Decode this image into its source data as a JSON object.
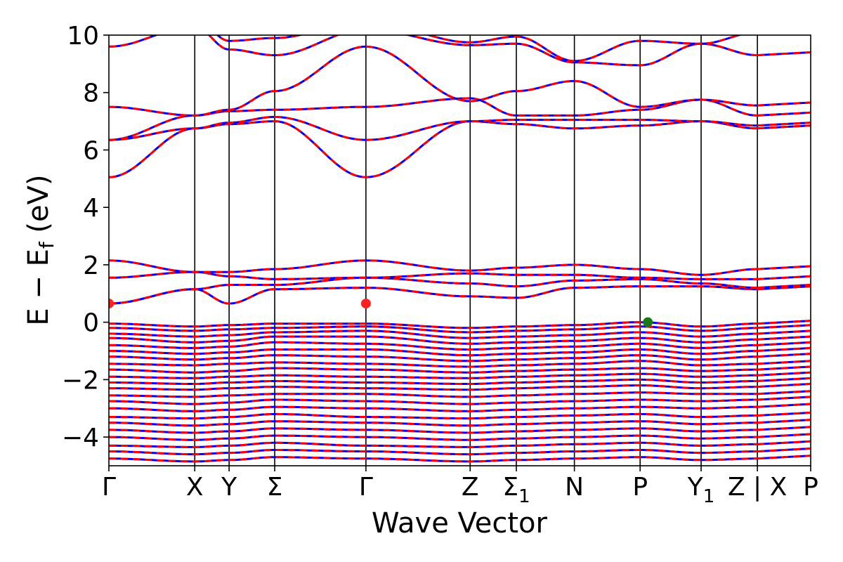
{
  "chart_data": {
    "type": "line",
    "xlabel": "Wave Vector",
    "ylabel": "E − E",
    "ylabel_sub": "f",
    "ylabel_unit": " (eV)",
    "ylim": [
      -5,
      10
    ],
    "yticks": [
      {
        "value": -4,
        "label": "−4"
      },
      {
        "value": -2,
        "label": "−2"
      },
      {
        "value": 0,
        "label": "0"
      },
      {
        "value": 2,
        "label": "2"
      },
      {
        "value": 4,
        "label": "4"
      },
      {
        "value": 6,
        "label": "6"
      },
      {
        "value": 8,
        "label": "8"
      },
      {
        "value": 10,
        "label": "10"
      }
    ],
    "xlim": [
      0,
      11.85
    ],
    "kpoints": [
      {
        "x": 0,
        "label": "Γ"
      },
      {
        "x": 1.45,
        "label": "X"
      },
      {
        "x": 2.03,
        "label": "Y"
      },
      {
        "x": 2.8,
        "label": "Σ"
      },
      {
        "x": 4.34,
        "label": "Γ"
      },
      {
        "x": 6.1,
        "label": "Z"
      },
      {
        "x": 6.88,
        "label": "Σ",
        "sub": "1"
      },
      {
        "x": 7.86,
        "label": "N"
      },
      {
        "x": 8.97,
        "label": "P"
      },
      {
        "x": 10.0,
        "label": "Y",
        "sub": "1"
      },
      {
        "x": 10.95,
        "label": "Z | X"
      },
      {
        "x": 11.85,
        "label": "P"
      }
    ],
    "break_x": 10.95,
    "series_styles": [
      {
        "name": "",
        "color": "#0000ff",
        "dash": "none",
        "width": 3
      },
      {
        "name": "",
        "color": "#ff0000",
        "dash": "10 7",
        "width": 3
      }
    ],
    "bands": [
      [
        0.65,
        1.15,
        0.65,
        1.15,
        1.2,
        0.9,
        0.85,
        1.2,
        1.25,
        1.25,
        1.15
      ],
      [
        0.65,
        1.15,
        1.3,
        1.3,
        1.55,
        1.35,
        1.25,
        1.45,
        1.5,
        1.35,
        1.2
      ],
      [
        1.55,
        1.75,
        1.6,
        1.5,
        1.55,
        1.7,
        1.65,
        1.65,
        1.55,
        1.5,
        1.5
      ],
      [
        2.15,
        1.75,
        1.75,
        1.85,
        2.15,
        1.8,
        1.9,
        2.0,
        1.85,
        1.65,
        1.85
      ],
      [
        5.05,
        6.75,
        6.9,
        7.0,
        5.05,
        7.0,
        6.9,
        6.75,
        6.85,
        7.0,
        6.75
      ],
      [
        6.35,
        6.75,
        6.95,
        7.15,
        6.35,
        7.0,
        7.05,
        7.05,
        7.05,
        7.0,
        6.85
      ],
      [
        6.35,
        7.2,
        7.35,
        7.4,
        7.5,
        7.8,
        7.2,
        7.2,
        7.4,
        7.75,
        7.2
      ],
      [
        7.5,
        7.2,
        7.4,
        8.05,
        9.6,
        7.7,
        8.05,
        8.4,
        7.5,
        7.75,
        7.55
      ],
      [
        9.6,
        10.3,
        9.5,
        9.3,
        10.2,
        9.65,
        9.7,
        9.05,
        8.95,
        9.7,
        9.3
      ],
      [
        10.5,
        10.6,
        9.8,
        9.9,
        10.5,
        9.75,
        9.95,
        9.1,
        9.8,
        9.7,
        10.1
      ],
      [
        -0.05,
        -0.15,
        -0.1,
        -0.05,
        -0.05,
        -0.2,
        -0.15,
        -0.1,
        0.0,
        -0.15,
        -0.05
      ],
      [
        -0.2,
        -0.3,
        -0.25,
        -0.2,
        -0.15,
        -0.35,
        -0.3,
        -0.25,
        -0.15,
        -0.3,
        -0.2
      ],
      [
        -0.4,
        -0.5,
        -0.45,
        -0.35,
        -0.3,
        -0.55,
        -0.5,
        -0.45,
        -0.35,
        -0.5,
        -0.4
      ],
      [
        -0.55,
        -0.7,
        -0.65,
        -0.5,
        -0.5,
        -0.75,
        -0.7,
        -0.65,
        -0.55,
        -0.7,
        -0.6
      ],
      [
        -0.8,
        -0.9,
        -0.85,
        -0.7,
        -0.75,
        -0.95,
        -0.9,
        -0.85,
        -0.75,
        -0.9,
        -0.8
      ],
      [
        -1.0,
        -1.1,
        -1.05,
        -0.95,
        -0.95,
        -1.15,
        -1.1,
        -1.05,
        -0.95,
        -1.1,
        -1.0
      ],
      [
        -1.2,
        -1.3,
        -1.25,
        -1.15,
        -1.2,
        -1.35,
        -1.3,
        -1.25,
        -1.15,
        -1.3,
        -1.2
      ],
      [
        -1.45,
        -1.5,
        -1.45,
        -1.4,
        -1.45,
        -1.55,
        -1.5,
        -1.45,
        -1.35,
        -1.5,
        -1.45
      ],
      [
        -1.65,
        -1.75,
        -1.7,
        -1.6,
        -1.65,
        -1.75,
        -1.7,
        -1.65,
        -1.6,
        -1.7,
        -1.65
      ],
      [
        -1.9,
        -1.95,
        -1.9,
        -1.85,
        -1.9,
        -1.95,
        -1.9,
        -1.85,
        -1.8,
        -1.9,
        -1.85
      ],
      [
        -2.1,
        -2.15,
        -2.1,
        -2.05,
        -2.1,
        -2.15,
        -2.1,
        -2.05,
        -2.0,
        -2.1,
        -2.05
      ],
      [
        -2.3,
        -2.35,
        -2.3,
        -2.25,
        -2.3,
        -2.35,
        -2.3,
        -2.25,
        -2.2,
        -2.3,
        -2.25
      ],
      [
        -2.55,
        -2.6,
        -2.55,
        -2.5,
        -2.5,
        -2.6,
        -2.55,
        -2.5,
        -2.45,
        -2.5,
        -2.5
      ],
      [
        -2.75,
        -2.85,
        -2.8,
        -2.7,
        -2.75,
        -2.85,
        -2.8,
        -2.75,
        -2.7,
        -2.75,
        -2.7
      ],
      [
        -3.0,
        -3.1,
        -3.05,
        -2.95,
        -3.0,
        -3.1,
        -3.05,
        -3.0,
        -2.95,
        -3.0,
        -2.95
      ],
      [
        -3.3,
        -3.35,
        -3.3,
        -3.2,
        -3.3,
        -3.35,
        -3.3,
        -3.25,
        -3.2,
        -3.3,
        -3.25
      ],
      [
        -3.5,
        -3.6,
        -3.55,
        -3.45,
        -3.5,
        -3.6,
        -3.55,
        -3.5,
        -3.45,
        -3.55,
        -3.5
      ],
      [
        -3.75,
        -3.85,
        -3.8,
        -3.7,
        -3.75,
        -3.85,
        -3.8,
        -3.75,
        -3.7,
        -3.8,
        -3.75
      ],
      [
        -4.0,
        -4.1,
        -4.05,
        -3.95,
        -4.0,
        -4.1,
        -4.05,
        -4.0,
        -3.95,
        -4.05,
        -4.0
      ],
      [
        -4.3,
        -4.35,
        -4.3,
        -4.2,
        -4.3,
        -4.35,
        -4.3,
        -4.25,
        -4.2,
        -4.3,
        -4.25
      ],
      [
        -4.5,
        -4.6,
        -4.55,
        -4.45,
        -4.5,
        -4.6,
        -4.55,
        -4.5,
        -4.45,
        -4.55,
        -4.5
      ],
      [
        -4.75,
        -4.85,
        -4.8,
        -4.7,
        -4.75,
        -4.85,
        -4.8,
        -4.75,
        -4.7,
        -4.8,
        -4.75
      ]
    ],
    "markers": [
      {
        "x": 0.0,
        "y": 0.65,
        "color": "#ff2020"
      },
      {
        "x": 4.34,
        "y": 0.65,
        "color": "#ff2020"
      },
      {
        "x": 9.1,
        "y": 0.0,
        "color": "#1a7a1a"
      }
    ]
  }
}
